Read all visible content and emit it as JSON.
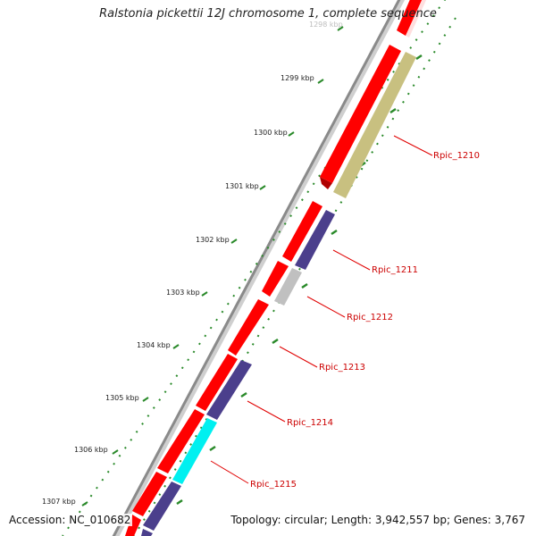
{
  "title": "Ralstonia pickettii 12J chromosome 1, complete sequence",
  "footer": {
    "accession": "Accession: NC_010682",
    "summary": "Topology: circular; Length: 3,942,557 bp; Genes: 3,767"
  },
  "colors": {
    "backbone": "#8a8a8a",
    "forward_gene": "#ff0000",
    "reverse_gene": "#4b3f8c",
    "olive_gene": "#c8c080",
    "gray_gene": "#c0c0c0",
    "cyan_gene": "#00f0f0",
    "tick": "#2a8a2a",
    "label_line": "#e00000"
  },
  "scale_ticks": [
    {
      "label": "1298 kbp"
    },
    {
      "label": "1299 kbp"
    },
    {
      "label": "1300 kbp"
    },
    {
      "label": "1301 kbp"
    },
    {
      "label": "1302 kbp"
    },
    {
      "label": "1303 kbp"
    },
    {
      "label": "1304 kbp"
    },
    {
      "label": "1305 kbp"
    },
    {
      "label": "1306 kbp"
    },
    {
      "label": "1307 kbp"
    }
  ],
  "gene_labels": [
    {
      "label": "Rpic_1210"
    },
    {
      "label": "Rpic_1211"
    },
    {
      "label": "Rpic_1212"
    },
    {
      "label": "Rpic_1213"
    },
    {
      "label": "Rpic_1214"
    },
    {
      "label": "Rpic_1215"
    }
  ]
}
